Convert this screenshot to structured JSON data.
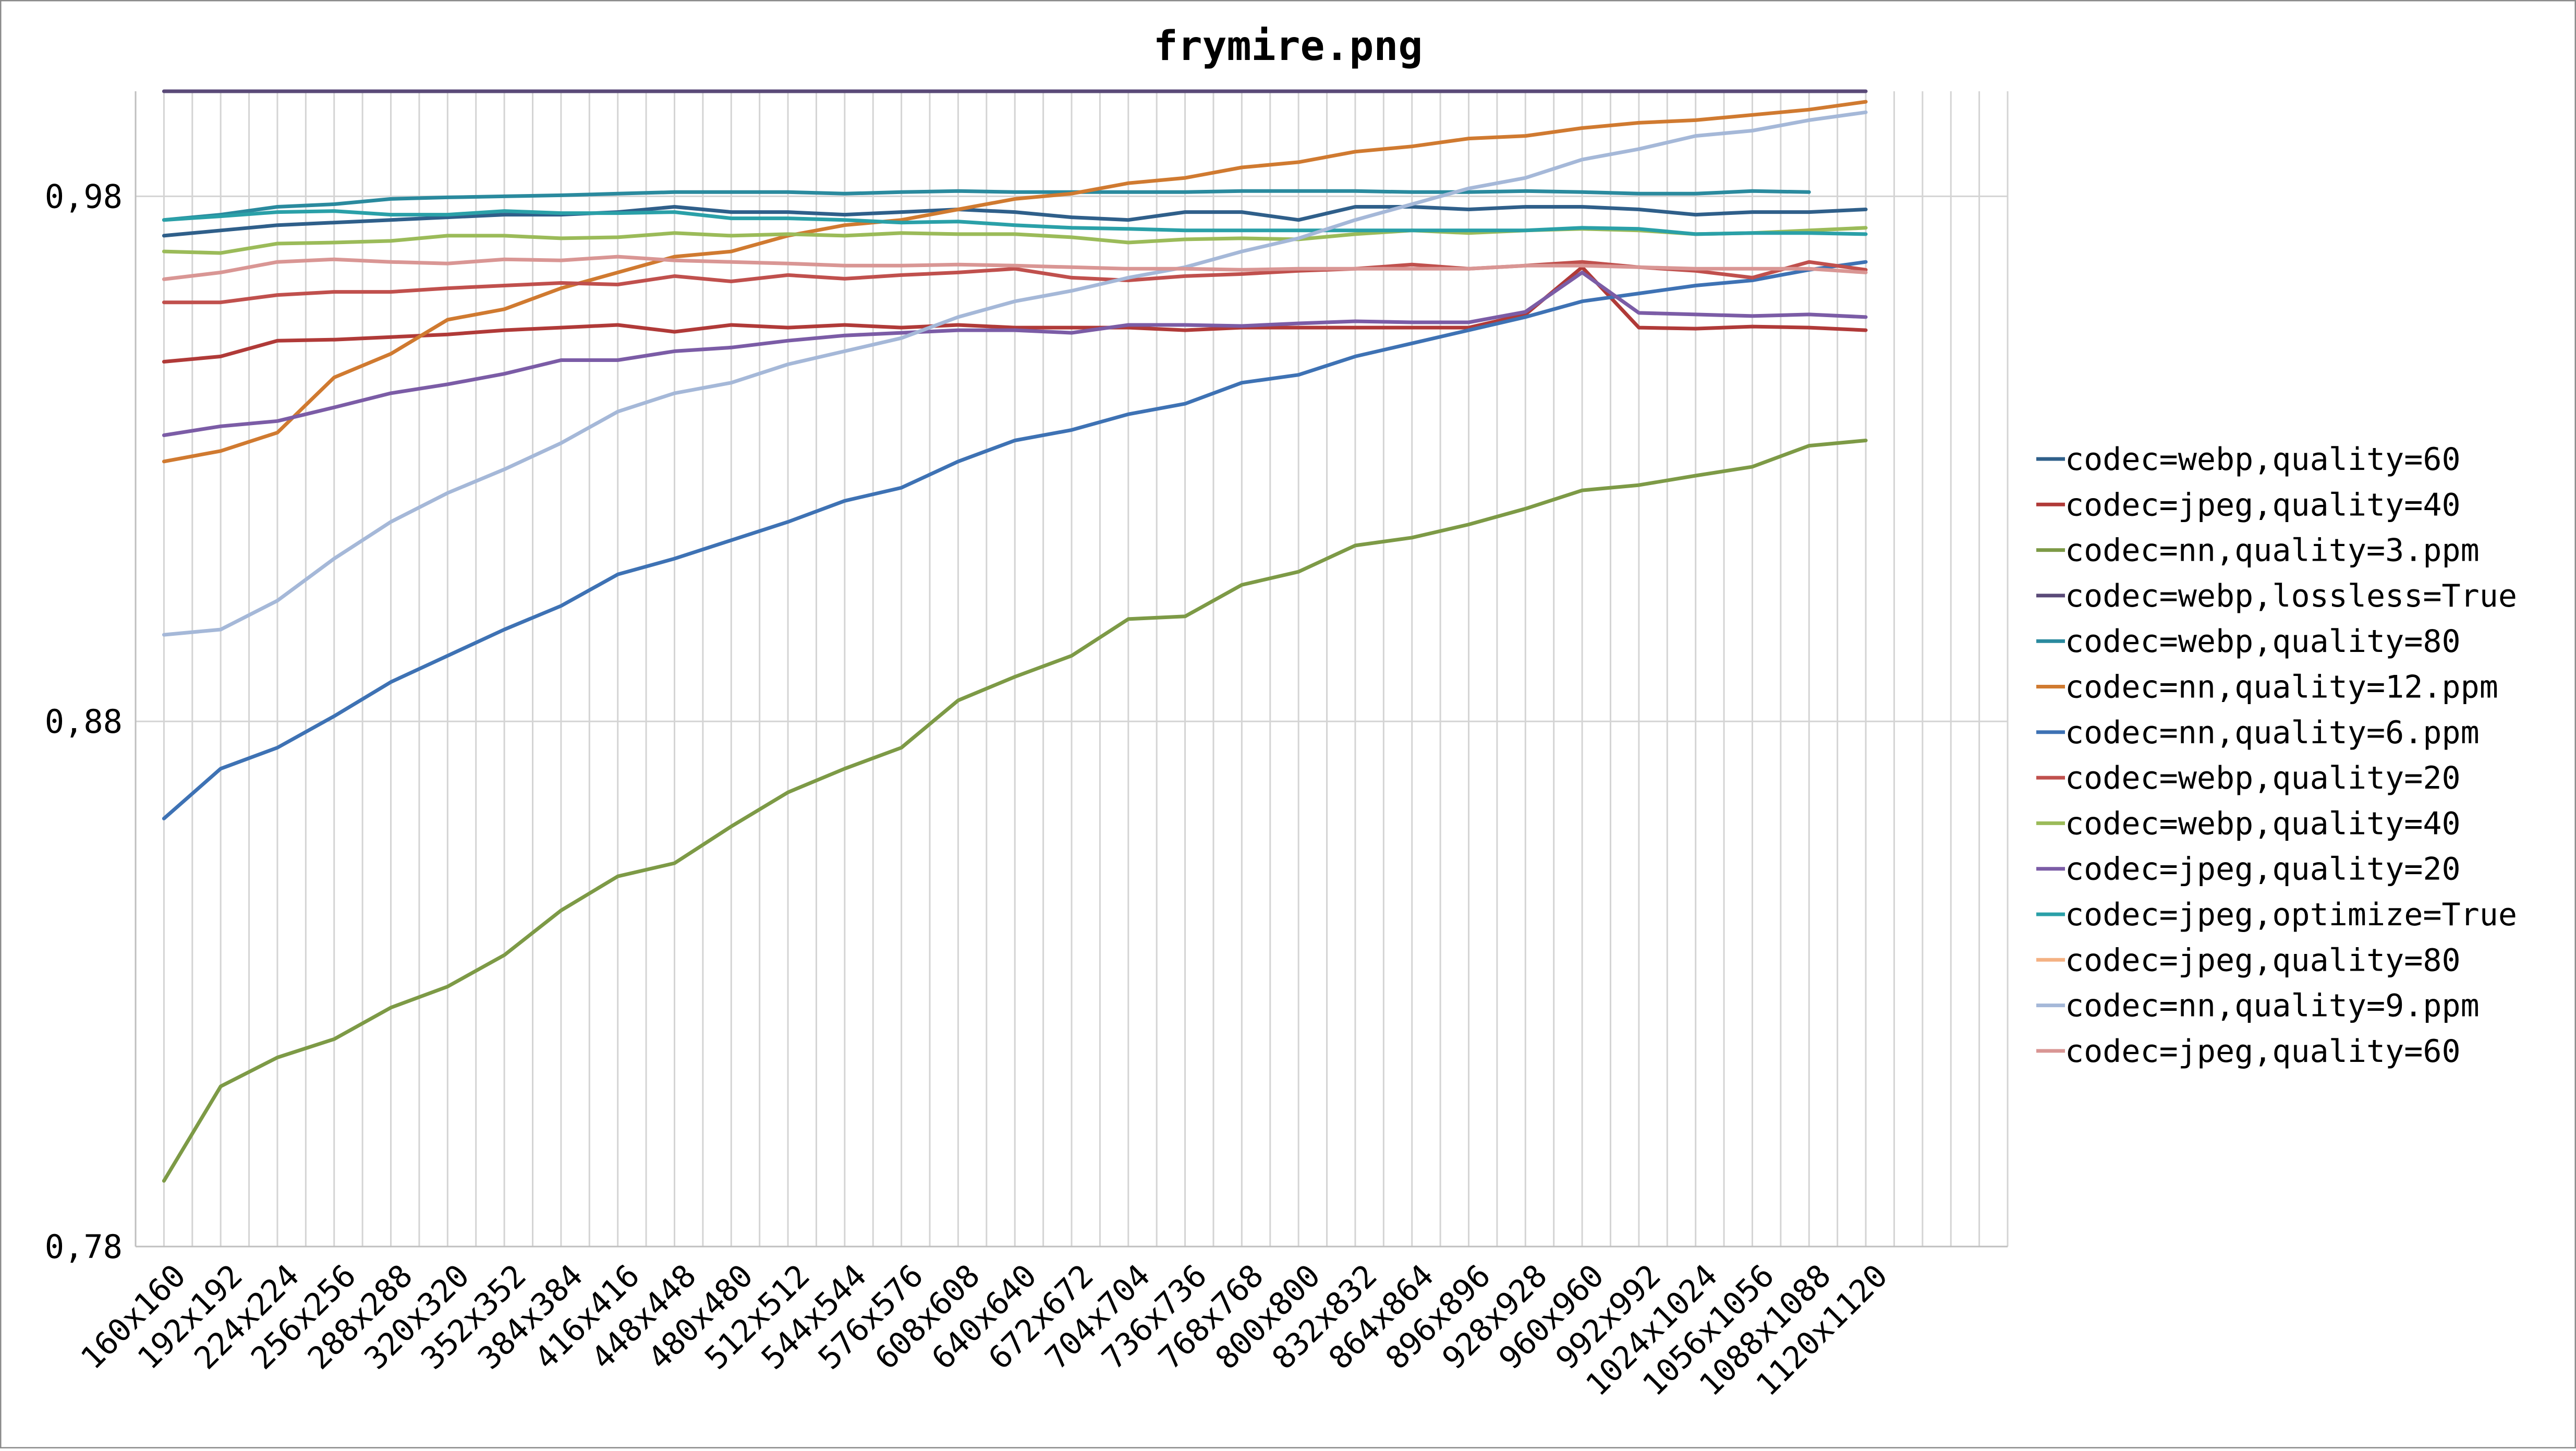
{
  "chart_data": {
    "type": "line",
    "title": "frymire.png",
    "xlabel": "",
    "ylabel": "",
    "ylim": [
      0.78,
      1.0
    ],
    "yticks": [
      "0,78",
      "0,88",
      "0,98"
    ],
    "ytick_values": [
      0.78,
      0.88,
      0.98
    ],
    "grid": true,
    "legend_position": "right",
    "categories": [
      "160x160",
      "192x192",
      "224x224",
      "256x256",
      "288x288",
      "320x320",
      "352x352",
      "384x384",
      "416x416",
      "448x448",
      "480x480",
      "512x512",
      "544x544",
      "576x576",
      "608x608",
      "640x640",
      "672x672",
      "704x704",
      "736x736",
      "768x768",
      "800x800",
      "832x832",
      "864x864",
      "896x896",
      "928x928",
      "960x960",
      "992x992",
      "1024x1024",
      "1056x1056",
      "1088x1088",
      "1120x1120"
    ],
    "category_slots": 66,
    "series": [
      {
        "name": "codec=webp,quality=60",
        "color": "#2f5f8a",
        "values": [
          0.9725,
          0.9735,
          0.9745,
          0.975,
          0.9755,
          0.976,
          0.9765,
          0.9765,
          0.977,
          0.978,
          0.977,
          0.977,
          0.9765,
          0.977,
          0.9775,
          0.977,
          0.976,
          0.9755,
          0.977,
          0.977,
          0.9755,
          0.978,
          0.978,
          0.9775,
          0.978,
          0.978,
          0.9775,
          0.9765,
          0.977,
          0.977,
          0.9775
        ]
      },
      {
        "name": "codec=jpeg,quality=40",
        "color": "#b03a38",
        "values": [
          0.9485,
          0.9495,
          0.9525,
          0.9527,
          0.9532,
          0.9537,
          0.9545,
          0.955,
          0.9555,
          0.9542,
          0.9555,
          0.955,
          0.9555,
          0.955,
          0.9555,
          0.955,
          0.955,
          0.955,
          0.9545,
          0.955,
          0.955,
          0.955,
          0.955,
          0.955,
          0.9575,
          0.9665,
          0.955,
          0.9548,
          0.9552,
          0.955,
          0.9545
        ]
      },
      {
        "name": "codec=nn,quality=3.ppm",
        "color": "#7d9a46",
        "values": [
          0.7925,
          0.8105,
          0.816,
          0.8195,
          0.8255,
          0.8295,
          0.8355,
          0.844,
          0.8505,
          0.853,
          0.86,
          0.8665,
          0.871,
          0.875,
          0.884,
          0.8885,
          0.8925,
          0.8995,
          0.9,
          0.906,
          0.9085,
          0.9135,
          0.915,
          0.9175,
          0.9205,
          0.924,
          0.925,
          0.9268,
          0.9285,
          0.9325,
          0.9335
        ]
      },
      {
        "name": "codec=webp,lossless=True",
        "color": "#5a4a78",
        "values": [
          1.0,
          1.0,
          1.0,
          1.0,
          1.0,
          1.0,
          1.0,
          1.0,
          1.0,
          1.0,
          1.0,
          1.0,
          1.0,
          1.0,
          1.0,
          1.0,
          1.0,
          1.0,
          1.0,
          1.0,
          1.0,
          1.0,
          1.0,
          1.0,
          1.0,
          1.0,
          1.0,
          1.0,
          1.0,
          1.0,
          1.0
        ]
      },
      {
        "name": "codec=webp,quality=80",
        "color": "#2a8a9e",
        "values": [
          0.9755,
          0.9765,
          0.978,
          0.9785,
          0.9795,
          0.9798,
          0.98,
          0.9802,
          0.9805,
          0.9808,
          0.9808,
          0.9808,
          0.9805,
          0.9808,
          0.981,
          0.9808,
          0.9808,
          0.9808,
          0.9808,
          0.981,
          0.981,
          0.981,
          0.9808,
          0.9808,
          0.981,
          0.9808,
          0.9805,
          0.9805,
          0.981,
          0.9808,
          null
        ]
      },
      {
        "name": "codec=nn,quality=12.ppm",
        "color": "#d07a30",
        "values": [
          0.9295,
          0.9315,
          0.935,
          0.9455,
          0.95,
          0.9565,
          0.9585,
          0.9625,
          0.9655,
          0.9685,
          0.9695,
          0.9725,
          0.9745,
          0.9755,
          0.9775,
          0.9795,
          0.9805,
          0.9825,
          0.9835,
          0.9855,
          0.9865,
          0.9885,
          0.9895,
          0.991,
          0.9915,
          0.993,
          0.994,
          0.9945,
          0.9955,
          0.9965,
          0.998
        ]
      },
      {
        "name": "codec=nn,quality=6.ppm",
        "color": "#3e72b4",
        "values": [
          0.8615,
          0.871,
          0.875,
          0.881,
          0.8875,
          0.8925,
          0.8975,
          0.902,
          0.908,
          0.911,
          0.9145,
          0.918,
          0.922,
          0.9245,
          0.9295,
          0.9335,
          0.9355,
          0.9385,
          0.9405,
          0.9445,
          0.946,
          0.9495,
          0.952,
          0.9545,
          0.957,
          0.96,
          0.9615,
          0.963,
          0.964,
          0.966,
          0.9675
        ]
      },
      {
        "name": "codec=webp,quality=20",
        "color": "#c0504d",
        "values": [
          0.9598,
          0.9598,
          0.9612,
          0.9618,
          0.9618,
          0.9625,
          0.963,
          0.9635,
          0.9632,
          0.9648,
          0.9638,
          0.965,
          0.9643,
          0.965,
          0.9655,
          0.9662,
          0.9645,
          0.964,
          0.9648,
          0.9652,
          0.9658,
          0.9662,
          0.967,
          0.9662,
          0.9668,
          0.9675,
          0.9665,
          0.9658,
          0.9645,
          0.9675,
          0.966
        ]
      },
      {
        "name": "codec=webp,quality=40",
        "color": "#9bbb59",
        "values": [
          0.9695,
          0.9692,
          0.971,
          0.9712,
          0.9715,
          0.9725,
          0.9725,
          0.972,
          0.9722,
          0.973,
          0.9725,
          0.9728,
          0.9725,
          0.973,
          0.9728,
          0.9728,
          0.9722,
          0.9712,
          0.9718,
          0.972,
          0.9718,
          0.9728,
          0.9735,
          0.973,
          0.9735,
          0.9738,
          0.9735,
          0.9728,
          0.973,
          0.9735,
          0.974
        ]
      },
      {
        "name": "codec=jpeg,quality=20",
        "color": "#7b5ca6",
        "values": [
          0.9345,
          0.9362,
          0.9372,
          0.9398,
          0.9425,
          0.9442,
          0.9462,
          0.9488,
          0.9488,
          0.9505,
          0.9512,
          0.9525,
          0.9535,
          0.954,
          0.9545,
          0.9545,
          0.954,
          0.9555,
          0.9555,
          0.9553,
          0.9558,
          0.9562,
          0.956,
          0.956,
          0.958,
          0.9655,
          0.9578,
          0.9575,
          0.9572,
          0.9575,
          0.957
        ]
      },
      {
        "name": "codec=jpeg,optimize=True",
        "color": "#2aa0a8",
        "values": [
          0.9755,
          0.9762,
          0.977,
          0.9772,
          0.9765,
          0.9765,
          0.9772,
          0.9768,
          0.9768,
          0.977,
          0.9758,
          0.9758,
          0.9755,
          0.975,
          0.9752,
          0.9745,
          0.974,
          0.9738,
          0.9735,
          0.9735,
          0.9735,
          0.9735,
          0.9735,
          0.9735,
          0.9735,
          0.974,
          0.9738,
          0.9728,
          0.973,
          0.973,
          0.9728
        ]
      },
      {
        "name": "codec=jpeg,quality=80",
        "color": "#f4b183",
        "values": [
          null,
          null,
          null,
          null,
          null,
          null,
          null,
          null,
          null,
          null,
          null,
          null,
          null,
          null,
          null,
          null,
          null,
          null,
          null,
          null,
          null,
          null,
          null,
          null,
          null,
          null,
          null,
          null,
          null,
          null,
          null
        ]
      },
      {
        "name": "codec=nn,quality=9.ppm",
        "color": "#a5b8d8",
        "values": [
          0.8965,
          0.8975,
          0.903,
          0.911,
          0.918,
          0.9235,
          0.928,
          0.933,
          0.939,
          0.9425,
          0.9445,
          0.948,
          0.9505,
          0.953,
          0.957,
          0.96,
          0.962,
          0.9645,
          0.9665,
          0.9695,
          0.972,
          0.9755,
          0.9785,
          0.9815,
          0.9835,
          0.987,
          0.989,
          0.9915,
          0.9925,
          0.9945,
          0.996
        ]
      },
      {
        "name": "codec=jpeg,quality=60",
        "color": "#d99694",
        "values": [
          0.9642,
          0.9655,
          0.9675,
          0.968,
          0.9675,
          0.9672,
          0.968,
          0.9678,
          0.9685,
          0.9678,
          0.9675,
          0.9672,
          0.9668,
          0.9668,
          0.967,
          0.9668,
          0.9665,
          0.9662,
          0.9662,
          0.966,
          0.9662,
          0.9662,
          0.9662,
          0.9662,
          0.9668,
          0.9668,
          0.9665,
          0.9662,
          0.9662,
          0.9662,
          0.9655
        ]
      }
    ]
  }
}
